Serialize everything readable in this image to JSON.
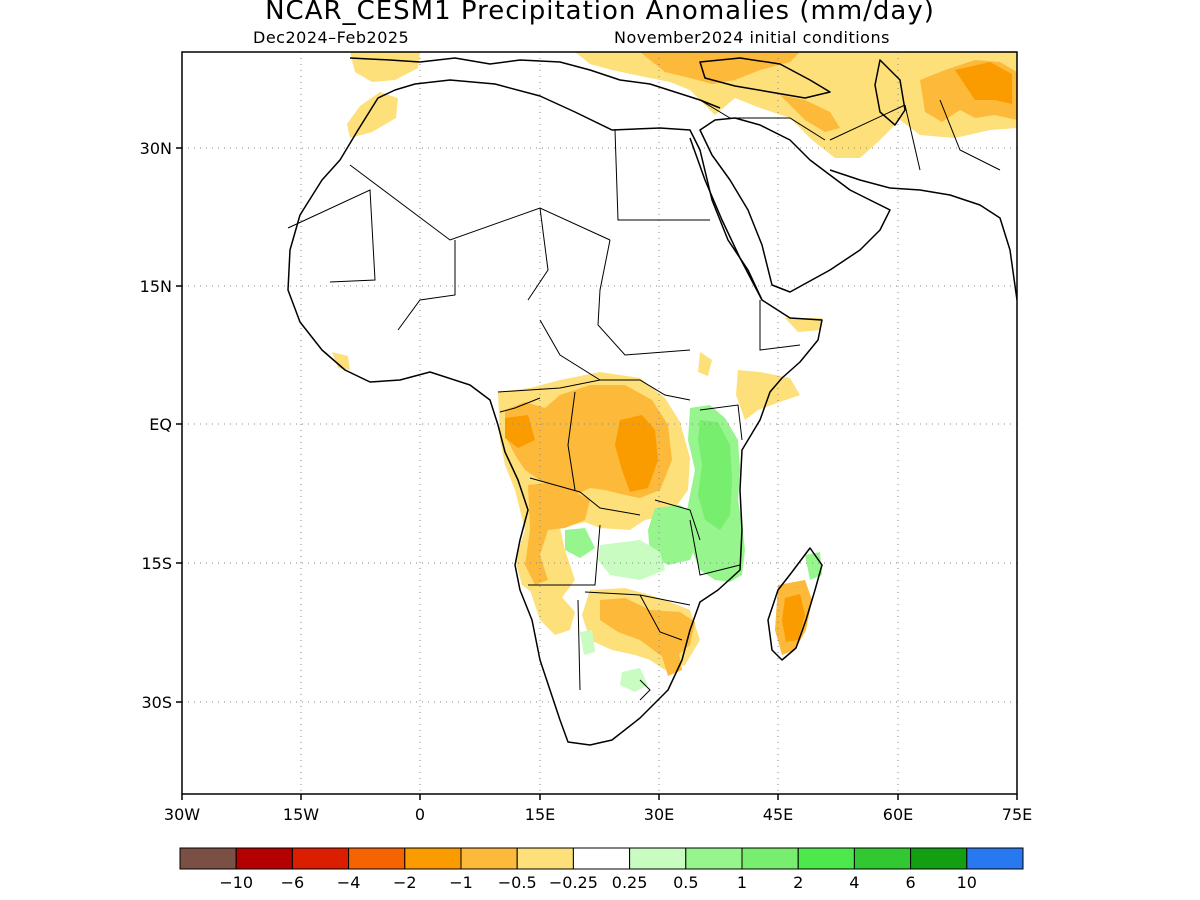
{
  "title": "NCAR_CESM1 Precipitation Anomalies (mm/day)",
  "subtitle_left": "Dec2024–Feb2025",
  "subtitle_right": "November2024 initial conditions",
  "lat_ticks": [
    "30N",
    "15N",
    "EQ",
    "15S",
    "30S"
  ],
  "lon_ticks": [
    "30W",
    "15W",
    "0",
    "15E",
    "30E",
    "45E",
    "60E",
    "75E"
  ],
  "colorbar": {
    "colors": [
      "#7a5044",
      "#b40000",
      "#dc1e00",
      "#f56400",
      "#fa9c00",
      "#fdb93a",
      "#fde07a",
      "#ffffff",
      "#c8fcc0",
      "#96f58c",
      "#78ee6e",
      "#4ce84c",
      "#32c832",
      "#12a012",
      "#2878f0"
    ],
    "labels": [
      "−10",
      "−6",
      "−4",
      "−2",
      "−1",
      "−0.5",
      "−0.25",
      "0.25",
      "0.5",
      "1",
      "2",
      "4",
      "6",
      "10"
    ]
  }
}
